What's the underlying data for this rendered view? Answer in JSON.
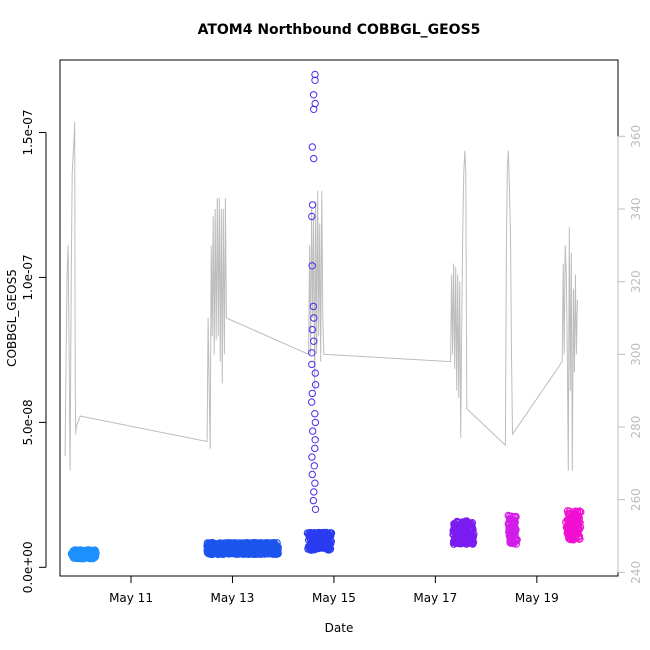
{
  "chart_data": {
    "type": "scatter",
    "title": "ATOM4 Northbound COBBGL_GEOS5",
    "xlabel": "Date",
    "ylabel": "COBBGL_GEOS5",
    "x_unit": "day of May",
    "xlim": [
      9.6,
      20.6
    ],
    "ylim": [
      -3e-09,
      1.75e-07
    ],
    "x_ticks": [
      {
        "value": 11,
        "label": "May 11"
      },
      {
        "value": 13,
        "label": "May 13"
      },
      {
        "value": 15,
        "label": "May 15"
      },
      {
        "value": 17,
        "label": "May 17"
      },
      {
        "value": 19,
        "label": "May 19"
      }
    ],
    "y_ticks": [
      {
        "value": 0,
        "label": "0.0e+00"
      },
      {
        "value": 5e-08,
        "label": "5.0e-08"
      },
      {
        "value": 1e-07,
        "label": "1.0e-07"
      },
      {
        "value": 1.5e-07,
        "label": "1.5e-07"
      }
    ],
    "y2_ticks": [
      {
        "value": 240,
        "label": "240"
      },
      {
        "value": 260,
        "label": "260"
      },
      {
        "value": 280,
        "label": "280"
      },
      {
        "value": 300,
        "label": "300"
      },
      {
        "value": 320,
        "label": "320"
      },
      {
        "value": 340,
        "label": "340"
      },
      {
        "value": 360,
        "label": "360"
      }
    ],
    "y2lim": [
      239,
      381
    ],
    "grid": false,
    "line_color": "#bdbdbd",
    "point_clusters": [
      {
        "x_start": 9.85,
        "x_end": 10.3,
        "y_center": 4.5e-09,
        "y_spread": 1.5e-09,
        "color": "#1e90ff"
      },
      {
        "x_start": 12.5,
        "x_end": 13.9,
        "y_center": 6.5e-09,
        "y_spread": 2e-09,
        "color": "#1c55ee"
      },
      {
        "x_start": 14.5,
        "x_end": 14.95,
        "y_center": 9e-09,
        "y_spread": 3e-09,
        "color": "#2a3cf0"
      },
      {
        "x_start": 17.35,
        "x_end": 17.75,
        "y_center": 1.2e-08,
        "y_spread": 4e-09,
        "color": "#7b1cf0"
      },
      {
        "x_start": 18.45,
        "x_end": 18.6,
        "y_center": 1.3e-08,
        "y_spread": 5e-09,
        "color": "#d21ce8"
      },
      {
        "x_start": 19.6,
        "x_end": 19.85,
        "y_center": 1.45e-08,
        "y_spread": 5e-09,
        "color": "#f00fd0"
      }
    ],
    "highlight_points": {
      "x": 14.6,
      "color": "#4a2ee8",
      "values": [
        1.7e-07,
        1.68e-07,
        1.63e-07,
        1.6e-07,
        1.58e-07,
        1.45e-07,
        1.41e-07,
        1.25e-07,
        1.21e-07,
        1.04e-07,
        9e-08,
        8.6e-08,
        8.2e-08,
        7.8e-08,
        7.4e-08,
        7e-08,
        6.7e-08,
        6.3e-08,
        6e-08,
        5.7e-08,
        5.3e-08,
        5e-08,
        4.7e-08,
        4.4e-08,
        4.1e-08,
        3.8e-08,
        3.5e-08,
        3.2e-08,
        2.9e-08,
        2.6e-08,
        2.3e-08,
        2e-08
      ]
    },
    "secondary_line": [
      [
        9.7,
        272
      ],
      [
        9.72,
        300
      ],
      [
        9.74,
        322
      ],
      [
        9.76,
        330
      ],
      [
        9.78,
        300
      ],
      [
        9.8,
        268
      ],
      [
        9.82,
        320
      ],
      [
        9.84,
        350
      ],
      [
        9.86,
        355
      ],
      [
        9.88,
        360
      ],
      [
        9.89,
        364
      ],
      [
        9.9,
        292
      ],
      [
        9.91,
        278
      ],
      [
        9.92,
        280
      ],
      [
        10.0,
        283
      ],
      [
        12.5,
        276
      ],
      [
        12.52,
        310
      ],
      [
        12.54,
        292
      ],
      [
        12.56,
        274
      ],
      [
        12.58,
        330
      ],
      [
        12.6,
        305
      ],
      [
        12.62,
        338
      ],
      [
        12.64,
        300
      ],
      [
        12.66,
        340
      ],
      [
        12.68,
        304
      ],
      [
        12.7,
        343
      ],
      [
        12.72,
        305
      ],
      [
        12.74,
        343
      ],
      [
        12.76,
        298
      ],
      [
        12.78,
        340
      ],
      [
        12.8,
        292
      ],
      [
        12.82,
        340
      ],
      [
        12.84,
        300
      ],
      [
        12.86,
        343
      ],
      [
        12.88,
        310
      ],
      [
        14.5,
        300
      ],
      [
        14.52,
        330
      ],
      [
        14.54,
        300
      ],
      [
        14.56,
        340
      ],
      [
        14.58,
        310
      ],
      [
        14.6,
        338
      ],
      [
        14.62,
        290
      ],
      [
        14.64,
        342
      ],
      [
        14.66,
        300
      ],
      [
        14.68,
        345
      ],
      [
        14.7,
        305
      ],
      [
        14.72,
        336
      ],
      [
        14.74,
        298
      ],
      [
        14.76,
        345
      ],
      [
        14.78,
        310
      ],
      [
        14.8,
        300
      ],
      [
        17.3,
        298
      ],
      [
        17.32,
        322
      ],
      [
        17.34,
        300
      ],
      [
        17.36,
        325
      ],
      [
        17.38,
        296
      ],
      [
        17.4,
        324
      ],
      [
        17.42,
        290
      ],
      [
        17.44,
        322
      ],
      [
        17.46,
        288
      ],
      [
        17.48,
        320
      ],
      [
        17.5,
        277
      ],
      [
        17.52,
        310
      ],
      [
        17.54,
        335
      ],
      [
        17.56,
        350
      ],
      [
        17.58,
        356
      ],
      [
        17.6,
        350
      ],
      [
        17.62,
        285
      ],
      [
        18.38,
        275
      ],
      [
        18.4,
        330
      ],
      [
        18.42,
        352
      ],
      [
        18.44,
        356
      ],
      [
        18.46,
        346
      ],
      [
        18.48,
        333
      ],
      [
        18.5,
        300
      ],
      [
        18.52,
        278
      ],
      [
        19.5,
        298
      ],
      [
        19.52,
        325
      ],
      [
        19.54,
        300
      ],
      [
        19.56,
        330
      ],
      [
        19.58,
        322
      ],
      [
        19.6,
        300
      ],
      [
        19.62,
        268
      ],
      [
        19.64,
        335
      ],
      [
        19.66,
        290
      ],
      [
        19.68,
        328
      ],
      [
        19.7,
        268
      ],
      [
        19.72,
        318
      ],
      [
        19.74,
        295
      ],
      [
        19.76,
        322
      ],
      [
        19.78,
        300
      ],
      [
        19.8,
        315
      ]
    ]
  }
}
